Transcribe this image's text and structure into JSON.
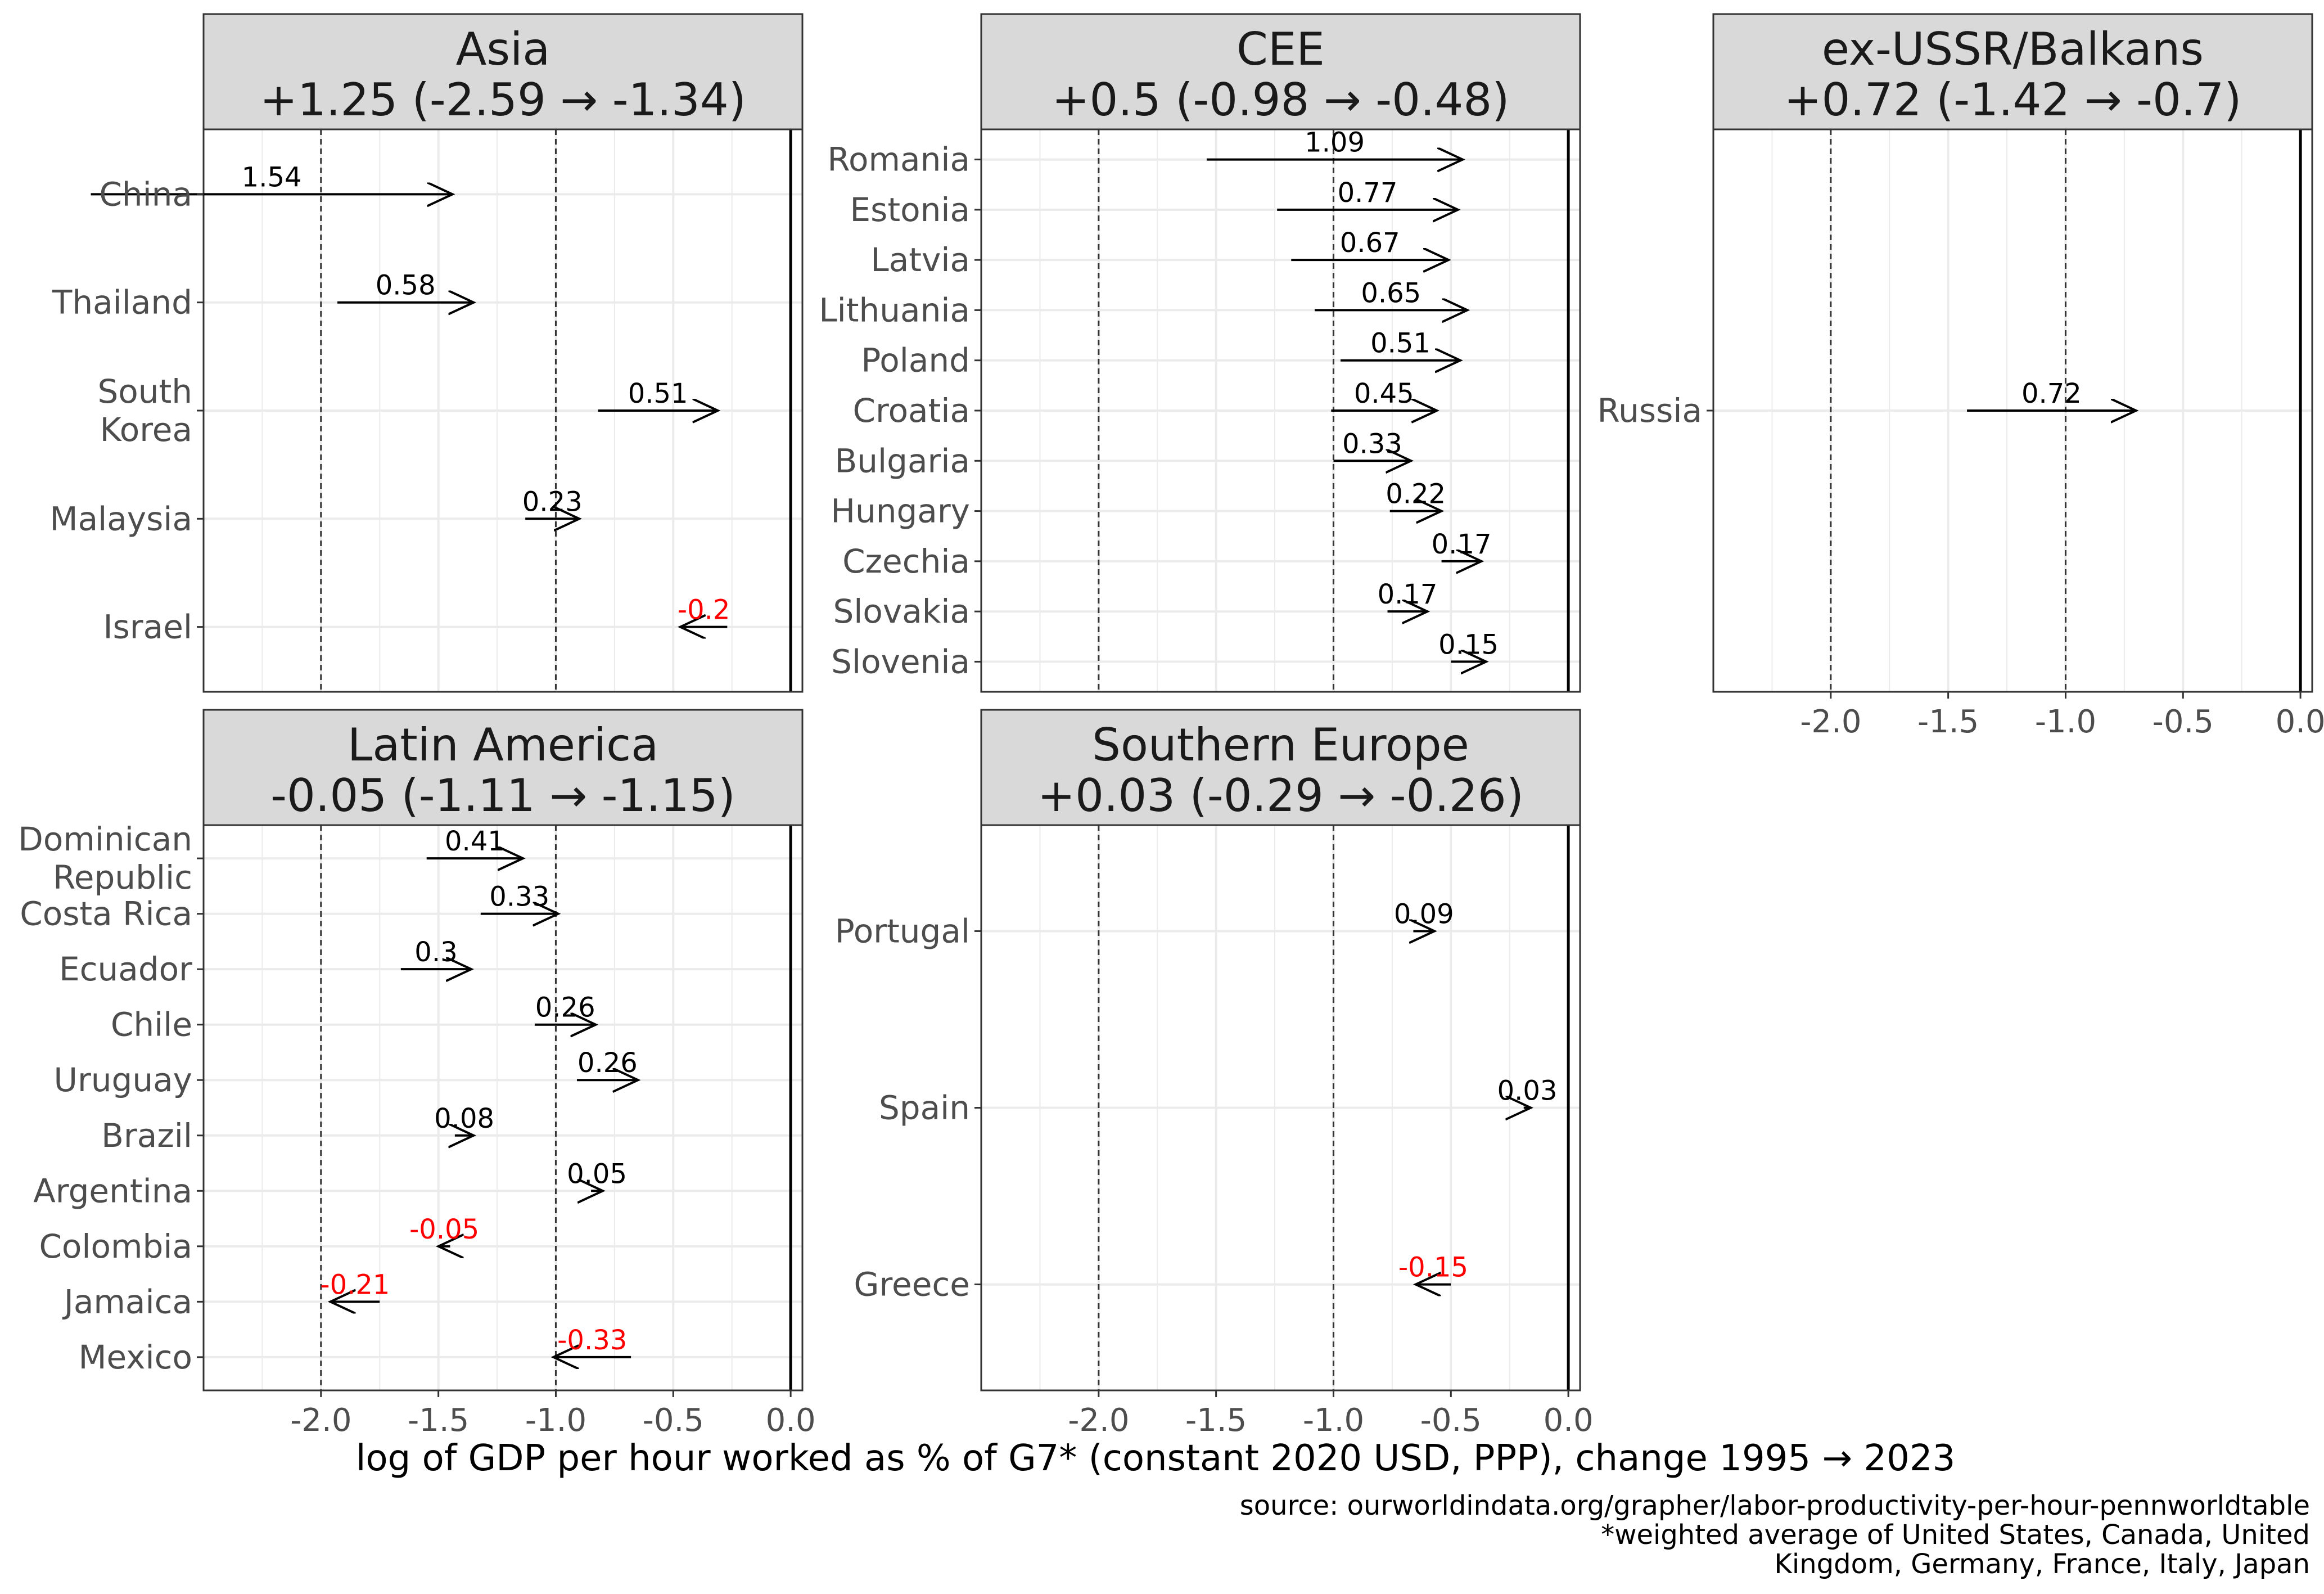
{
  "colors": {
    "positive": "#000000",
    "negative": "#ff0000",
    "grid": "#ebebeb",
    "strip": "#d9d9d9",
    "panel_border": "#333333"
  },
  "x_axis": {
    "title": "log of GDP per hour worked as % of G7* (constant 2020 USD, PPP), change 1995 → 2023",
    "ticks": [
      -2.0,
      -1.5,
      -1.0,
      -0.5,
      0.0
    ],
    "tick_labels": [
      "-2.0",
      "-1.5",
      "-1.0",
      "-0.5",
      "0.0"
    ],
    "xlim": [
      -2.5,
      0.05
    ],
    "reference_lines": [
      -2.0,
      -1.0
    ]
  },
  "caption": {
    "line1": "source: ourworldindata.org/grapher/labor-productivity-per-hour-pennworldtable",
    "line2": "*weighted average of United States, Canada, United",
    "line3": "Kingdom, Germany, France, Italy, Japan"
  },
  "chart_data": {
    "type": "arrow-dot",
    "panels": [
      {
        "title": "Asia",
        "subtitle": "+1.25 (-2.59 → -1.34)",
        "items": [
          {
            "label": [
              "China"
            ],
            "start": -2.98,
            "end": -1.44,
            "change": "1.54"
          },
          {
            "label": [
              "Thailand"
            ],
            "start": -1.93,
            "end": -1.35,
            "change": "0.58"
          },
          {
            "label": [
              "South",
              "Korea"
            ],
            "start": -0.82,
            "end": -0.31,
            "change": "0.51"
          },
          {
            "label": [
              "Malaysia"
            ],
            "start": -1.13,
            "end": -0.9,
            "change": "0.23"
          },
          {
            "label": [
              "Israel"
            ],
            "start": -0.27,
            "end": -0.47,
            "change": "-0.2"
          }
        ]
      },
      {
        "title": "CEE",
        "subtitle": "+0.5 (-0.98 → -0.48)",
        "items": [
          {
            "label": [
              "Romania"
            ],
            "start": -1.54,
            "end": -0.45,
            "change": "1.09"
          },
          {
            "label": [
              "Estonia"
            ],
            "start": -1.24,
            "end": -0.47,
            "change": "0.77"
          },
          {
            "label": [
              "Latvia"
            ],
            "start": -1.18,
            "end": -0.51,
            "change": "0.67"
          },
          {
            "label": [
              "Lithuania"
            ],
            "start": -1.08,
            "end": -0.43,
            "change": "0.65"
          },
          {
            "label": [
              "Poland"
            ],
            "start": -0.97,
            "end": -0.46,
            "change": "0.51"
          },
          {
            "label": [
              "Croatia"
            ],
            "start": -1.01,
            "end": -0.56,
            "change": "0.45"
          },
          {
            "label": [
              "Bulgaria"
            ],
            "start": -1.0,
            "end": -0.67,
            "change": "0.33"
          },
          {
            "label": [
              "Hungary"
            ],
            "start": -0.76,
            "end": -0.54,
            "change": "0.22"
          },
          {
            "label": [
              "Czechia"
            ],
            "start": -0.54,
            "end": -0.37,
            "change": "0.17"
          },
          {
            "label": [
              "Slovakia"
            ],
            "start": -0.77,
            "end": -0.6,
            "change": "0.17"
          },
          {
            "label": [
              "Slovenia"
            ],
            "start": -0.5,
            "end": -0.35,
            "change": "0.15"
          }
        ]
      },
      {
        "title": "ex-USSR/Balkans",
        "subtitle": "+0.72 (-1.42 → -0.7)",
        "items": [
          {
            "label": [
              "Russia"
            ],
            "start": -1.42,
            "end": -0.7,
            "change": "0.72"
          }
        ]
      },
      {
        "title": "Latin America",
        "subtitle": "-0.05 (-1.11 → -1.15)",
        "items": [
          {
            "label": [
              "Dominican",
              "Republic"
            ],
            "start": -1.55,
            "end": -1.14,
            "change": "0.41"
          },
          {
            "label": [
              "Costa Rica"
            ],
            "start": -1.32,
            "end": -0.99,
            "change": "0.33"
          },
          {
            "label": [
              "Ecuador"
            ],
            "start": -1.66,
            "end": -1.36,
            "change": "0.3"
          },
          {
            "label": [
              "Chile"
            ],
            "start": -1.09,
            "end": -0.83,
            "change": "0.26"
          },
          {
            "label": [
              "Uruguay"
            ],
            "start": -0.91,
            "end": -0.65,
            "change": "0.26"
          },
          {
            "label": [
              "Brazil"
            ],
            "start": -1.43,
            "end": -1.35,
            "change": "0.08"
          },
          {
            "label": [
              "Argentina"
            ],
            "start": -0.85,
            "end": -0.8,
            "change": "0.05"
          },
          {
            "label": [
              "Colombia"
            ],
            "start": -1.45,
            "end": -1.5,
            "change": "-0.05"
          },
          {
            "label": [
              "Jamaica"
            ],
            "start": -1.75,
            "end": -1.96,
            "change": "-0.21"
          },
          {
            "label": [
              "Mexico"
            ],
            "start": -0.68,
            "end": -1.01,
            "change": "-0.33"
          }
        ]
      },
      {
        "title": "Southern Europe",
        "subtitle": "+0.03 (-0.29 → -0.26)",
        "items": [
          {
            "label": [
              "Portugal"
            ],
            "start": -0.66,
            "end": -0.57,
            "change": "0.09"
          },
          {
            "label": [
              "Spain"
            ],
            "start": -0.19,
            "end": -0.16,
            "change": "0.03"
          },
          {
            "label": [
              "Greece"
            ],
            "start": -0.5,
            "end": -0.65,
            "change": "-0.15"
          }
        ]
      }
    ]
  }
}
